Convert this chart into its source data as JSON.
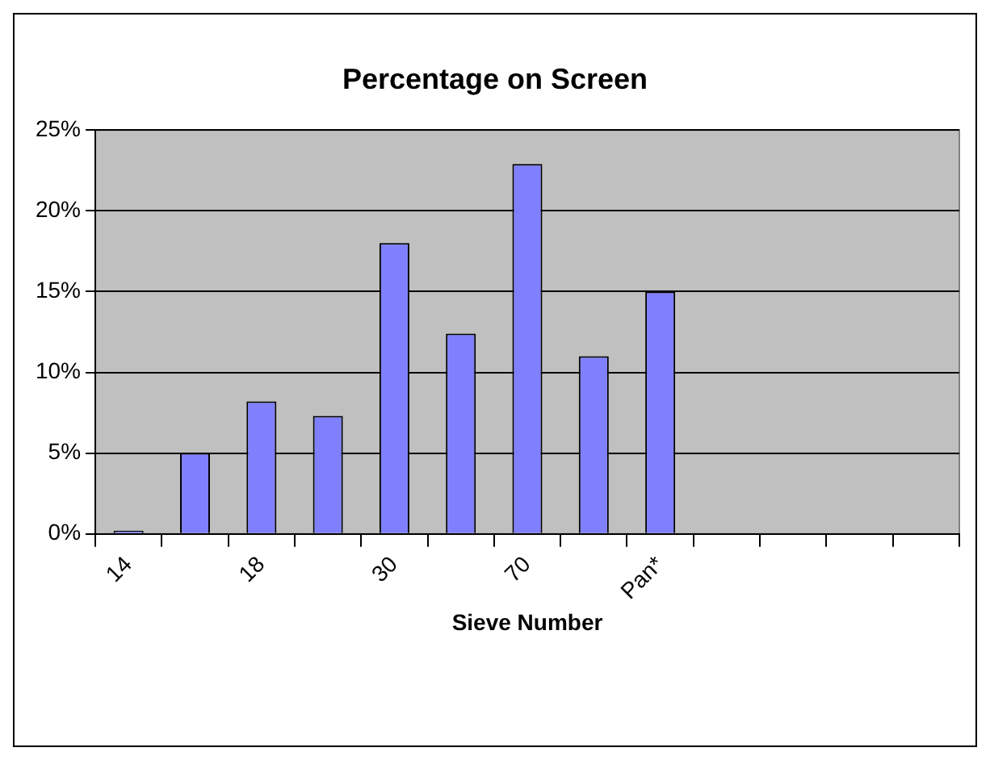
{
  "chart_data": {
    "type": "bar",
    "title": "Percentage on Screen",
    "xlabel": "Sieve Number",
    "categories": [
      "14",
      null,
      "18",
      null,
      "30",
      null,
      "70",
      null,
      "Pan*",
      null,
      null,
      null,
      null
    ],
    "values": [
      0.2,
      5.0,
      8.2,
      7.3,
      18.0,
      12.4,
      22.9,
      11.0,
      15.0,
      null,
      null,
      null,
      null
    ],
    "color": "#8080ff",
    "ylim": [
      0,
      25
    ],
    "yticks": [
      {
        "value": 0,
        "label": "0%"
      },
      {
        "value": 5,
        "label": "5%"
      },
      {
        "value": 10,
        "label": "10%"
      },
      {
        "value": 15,
        "label": "15%"
      },
      {
        "value": 20,
        "label": "20%"
      },
      {
        "value": 25,
        "label": "25%"
      }
    ],
    "grid": "y",
    "legend": false
  }
}
